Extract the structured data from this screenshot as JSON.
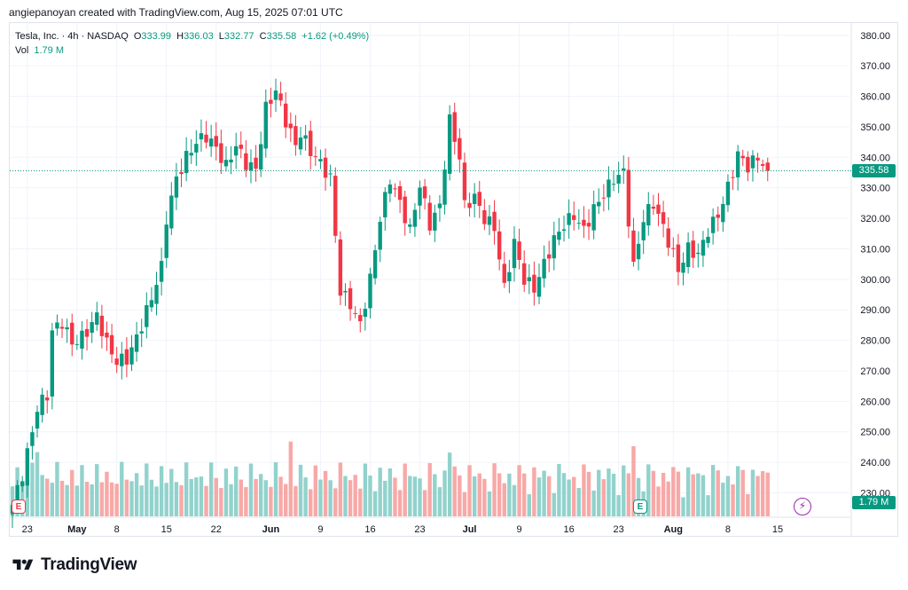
{
  "header": {
    "caption": "angiepanoyan created with TradingView.com, Aug 15, 2025 07:01 UTC"
  },
  "legend": {
    "symbol": "Tesla, Inc. · 4h · NASDAQ",
    "o_label": "O",
    "o_value": "333.99",
    "h_label": "H",
    "h_value": "336.03",
    "l_label": "L",
    "l_value": "332.77",
    "c_label": "C",
    "c_value": "335.58",
    "change": "+1.62 (+0.49%)",
    "vol_label": "Vol",
    "vol_value": "1.79 M"
  },
  "badges": {
    "last_price": "335.58",
    "volume": "1.79 M",
    "event_red": "E",
    "event_green": "E",
    "flash": "⚡"
  },
  "colors": {
    "up": "#089981",
    "down": "#f23645",
    "vol_up": "#92d2cc",
    "vol_down": "#f7a9a7",
    "grid": "#f0f3fa",
    "text": "#131722"
  },
  "logo": {
    "text": "TradingView"
  },
  "chart_data": {
    "type": "candlestick",
    "last_price": 335.58,
    "y_axis": {
      "ticks": [
        230,
        240,
        250,
        260,
        270,
        280,
        290,
        300,
        310,
        320,
        330,
        340,
        350,
        360,
        370,
        380
      ],
      "range": [
        222,
        384
      ]
    },
    "x_axis": {
      "labels": [
        {
          "text": "23",
          "index": 3
        },
        {
          "text": "May",
          "index": 13
        },
        {
          "text": "8",
          "index": 21
        },
        {
          "text": "15",
          "index": 31
        },
        {
          "text": "22",
          "index": 41
        },
        {
          "text": "Jun",
          "index": 52
        },
        {
          "text": "9",
          "index": 62
        },
        {
          "text": "16",
          "index": 72
        },
        {
          "text": "23",
          "index": 82
        },
        {
          "text": "Jul",
          "index": 92
        },
        {
          "text": "9",
          "index": 102
        },
        {
          "text": "16",
          "index": 112
        },
        {
          "text": "23",
          "index": 122
        },
        {
          "text": "Aug",
          "index": 133
        },
        {
          "text": "8",
          "index": 144
        },
        {
          "text": "15",
          "index": 154
        }
      ],
      "count": 160
    },
    "anchors": [
      [
        0,
        226
      ],
      [
        2,
        236
      ],
      [
        4,
        250
      ],
      [
        5,
        258
      ],
      [
        7,
        262
      ],
      [
        8,
        283
      ],
      [
        10,
        286
      ],
      [
        12,
        279
      ],
      [
        14,
        281
      ],
      [
        15,
        283
      ],
      [
        17,
        288
      ],
      [
        19,
        279
      ],
      [
        21,
        273
      ],
      [
        23,
        274
      ],
      [
        24,
        277
      ],
      [
        26,
        285
      ],
      [
        28,
        294
      ],
      [
        30,
        304
      ],
      [
        31,
        320
      ],
      [
        33,
        333
      ],
      [
        35,
        340
      ],
      [
        37,
        345
      ],
      [
        39,
        347
      ],
      [
        41,
        343
      ],
      [
        43,
        337
      ],
      [
        45,
        344
      ],
      [
        47,
        338
      ],
      [
        49,
        336
      ],
      [
        51,
        356
      ],
      [
        53,
        362
      ],
      [
        55,
        352
      ],
      [
        57,
        344
      ],
      [
        58,
        348
      ],
      [
        60,
        342
      ],
      [
        62,
        338
      ],
      [
        64,
        333
      ],
      [
        66,
        296
      ],
      [
        68,
        292
      ],
      [
        70,
        285
      ],
      [
        72,
        300
      ],
      [
        74,
        320
      ],
      [
        76,
        333
      ],
      [
        78,
        325
      ],
      [
        80,
        316
      ],
      [
        82,
        331
      ],
      [
        84,
        318
      ],
      [
        86,
        324
      ],
      [
        88,
        352
      ],
      [
        90,
        340
      ],
      [
        91,
        324
      ],
      [
        93,
        327
      ],
      [
        95,
        320
      ],
      [
        97,
        317
      ],
      [
        99,
        297
      ],
      [
        101,
        312
      ],
      [
        103,
        300
      ],
      [
        105,
        297
      ],
      [
        107,
        305
      ],
      [
        109,
        313
      ],
      [
        111,
        318
      ],
      [
        113,
        321
      ],
      [
        115,
        316
      ],
      [
        117,
        323
      ],
      [
        119,
        328
      ],
      [
        121,
        333
      ],
      [
        123,
        335
      ],
      [
        125,
        304
      ],
      [
        127,
        320
      ],
      [
        129,
        325
      ],
      [
        131,
        317
      ],
      [
        133,
        308
      ],
      [
        134,
        303
      ],
      [
        136,
        310
      ],
      [
        138,
        308
      ],
      [
        140,
        316
      ],
      [
        142,
        321
      ],
      [
        144,
        330
      ],
      [
        146,
        341
      ],
      [
        148,
        337
      ],
      [
        150,
        340
      ],
      [
        152,
        335.58
      ]
    ],
    "volume_range": [
      0,
      260
    ]
  }
}
